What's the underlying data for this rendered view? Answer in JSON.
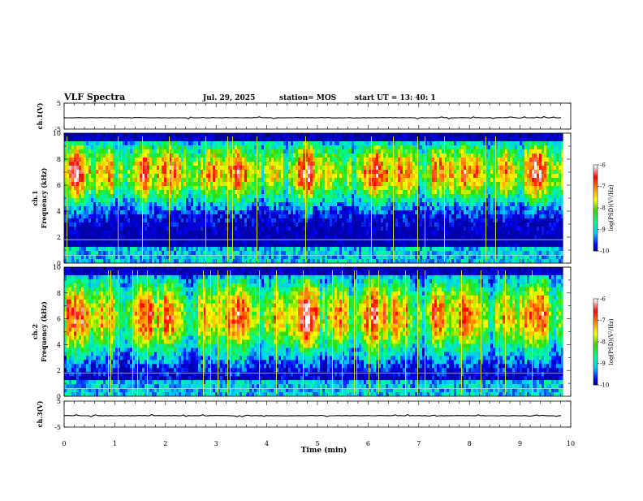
{
  "header": {
    "title": "VLF Spectra",
    "date": "Jul. 29, 2025",
    "station": "station= MOS",
    "start_ut": "start  UT  =   13: 40: 1"
  },
  "chart_data": {
    "type": "heatmap",
    "x_axis": {
      "label": "Time  (min)",
      "range": [
        0,
        10
      ],
      "ticks": [
        "0",
        "1",
        "2",
        "3",
        "4",
        "5",
        "6",
        "7",
        "8",
        "9",
        "10"
      ],
      "data_end": 9.85
    },
    "panels": [
      {
        "id": "ch1-voltage",
        "type": "line",
        "ylabel": "ch.1(V)",
        "ylim": [
          -5,
          5
        ],
        "yticks": [
          "5",
          "-5"
        ],
        "level": -0.6
      },
      {
        "id": "ch1-spectrum",
        "type": "heatmap",
        "ylabel_top": "ch.1",
        "ylabel": "Frequency  (kHz)",
        "ylim": [
          0,
          10
        ],
        "yticks": [
          "0",
          "2",
          "4",
          "6",
          "8",
          "10"
        ],
        "colorbar": {
          "label": "log(PSD)(V²/Hz)",
          "range": [
            -10,
            -6
          ],
          "ticks": [
            "-6",
            "-7",
            "-8",
            "-9",
            "-10"
          ]
        },
        "band_center_khz": 7.0,
        "band_halfwidth_khz": 2.6
      },
      {
        "id": "ch2-spectrum",
        "type": "heatmap",
        "ylabel_top": "ch.2",
        "ylabel": "Frequency  (kHz)",
        "ylim": [
          0,
          10
        ],
        "yticks": [
          "0",
          "2",
          "4",
          "6",
          "8",
          "10"
        ],
        "colorbar": {
          "label": "log(PSD)(V²/Hz)",
          "range": [
            -10,
            -6
          ],
          "ticks": [
            "-6",
            "-7",
            "-8",
            "-9",
            "-10"
          ]
        },
        "band_center_khz": 6.2,
        "band_halfwidth_khz": 3.2
      },
      {
        "id": "ch3-voltage",
        "type": "line",
        "ylabel": "ch.3(V)",
        "ylim": [
          -5,
          5
        ],
        "yticks": [
          "5",
          "-5"
        ],
        "level": -0.6
      }
    ],
    "colormap": [
      "#00006e",
      "#0000ff",
      "#00c8ff",
      "#00ff96",
      "#32dc00",
      "#ffff00",
      "#ff8c00",
      "#ff0000",
      "#ffffff"
    ]
  }
}
